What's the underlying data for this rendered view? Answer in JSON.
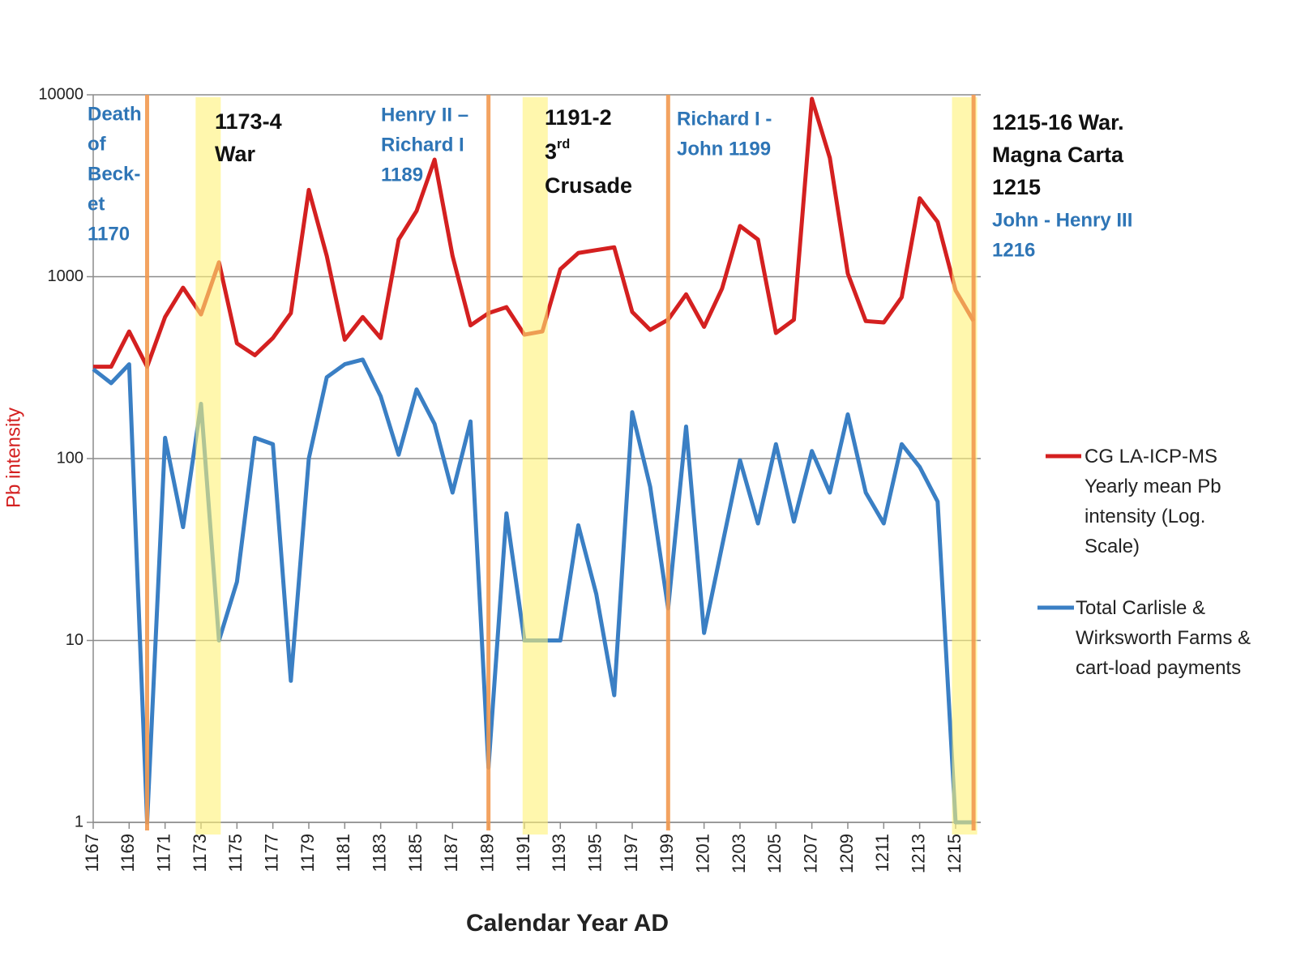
{
  "chart_data": {
    "type": "line",
    "x_label": "Calendar Year AD",
    "y_label": "Pb intensity",
    "y_label_color": "#d42020",
    "log_y": true,
    "grid": true,
    "ylim": [
      1,
      10000
    ],
    "yticks": [
      1,
      10,
      100,
      1000,
      10000
    ],
    "xlim": [
      1167,
      1216.4
    ],
    "xticks": [
      1167,
      1169,
      1171,
      1173,
      1175,
      1177,
      1179,
      1181,
      1183,
      1185,
      1187,
      1189,
      1191,
      1193,
      1195,
      1197,
      1199,
      1201,
      1203,
      1205,
      1207,
      1209,
      1211,
      1213,
      1215
    ],
    "x": [
      1167,
      1168,
      1169,
      1170,
      1171,
      1172,
      1173,
      1174,
      1175,
      1176,
      1177,
      1178,
      1179,
      1180,
      1181,
      1182,
      1183,
      1184,
      1185,
      1186,
      1187,
      1188,
      1189,
      1190,
      1191,
      1192,
      1193,
      1194,
      1195,
      1196,
      1197,
      1198,
      1199,
      1200,
      1201,
      1202,
      1203,
      1204,
      1205,
      1206,
      1207,
      1208,
      1209,
      1210,
      1211,
      1212,
      1213,
      1214,
      1215,
      1216
    ],
    "series": [
      {
        "name": "CG LA-ICP-MS Yearly mean Pb intensity (Log. Scale)",
        "color": "#d42020",
        "values": [
          320,
          320,
          500,
          320,
          600,
          870,
          620,
          1200,
          430,
          370,
          460,
          630,
          3000,
          1300,
          450,
          600,
          460,
          1600,
          2300,
          4400,
          1300,
          540,
          630,
          680,
          480,
          500,
          1100,
          1350,
          1400,
          1450,
          640,
          510,
          580,
          800,
          530,
          860,
          1900,
          1600,
          490,
          580,
          9500,
          4500,
          1040,
          570,
          560,
          770,
          2700,
          2000,
          840,
          570
        ]
      },
      {
        "name": "Total Carlisle & Wirksworth Farms & cart-load payments",
        "color": "#3a7fc4",
        "values": [
          310,
          260,
          330,
          1,
          130,
          42,
          200,
          10,
          21,
          130,
          120,
          6,
          100,
          280,
          330,
          350,
          220,
          105,
          240,
          155,
          65,
          160,
          2,
          50,
          10,
          10,
          10,
          43,
          18,
          5,
          180,
          70,
          15,
          150,
          11,
          33,
          98,
          44,
          120,
          45,
          110,
          65,
          175,
          65,
          44,
          120,
          90,
          58,
          1,
          1
        ]
      }
    ],
    "bands": [
      [
        1172.7,
        1174.1
      ],
      [
        1190.9,
        1192.3
      ],
      [
        1214.8,
        1216.2
      ]
    ],
    "band_color": "#fff176",
    "vlines": [
      1170,
      1189,
      1199,
      1216
    ],
    "vline_color": "#f29a50",
    "annotations": [
      {
        "color": "#2e75b6",
        "lines": [
          "Death",
          "of",
          "Beck-",
          "et",
          "1170"
        ]
      },
      {
        "color": "#111111",
        "lines": [
          "1173-4",
          "War"
        ]
      },
      {
        "color": "#2e75b6",
        "lines": [
          "Henry II –",
          "Richard I",
          "1189"
        ]
      },
      {
        "color": "#111111",
        "lines": [
          "1191-2",
          {
            "base": "3",
            "sup": "rd"
          },
          "Crusade"
        ]
      },
      {
        "color": "#2e75b6",
        "lines": [
          "Richard I -",
          "John 1199"
        ]
      },
      {
        "color": "#111111",
        "lines": [
          "1215-16 War.",
          "Magna  Carta",
          "1215"
        ]
      },
      {
        "color": "#2e75b6",
        "lines": [
          "John - Henry III",
          "1216"
        ]
      }
    ]
  }
}
